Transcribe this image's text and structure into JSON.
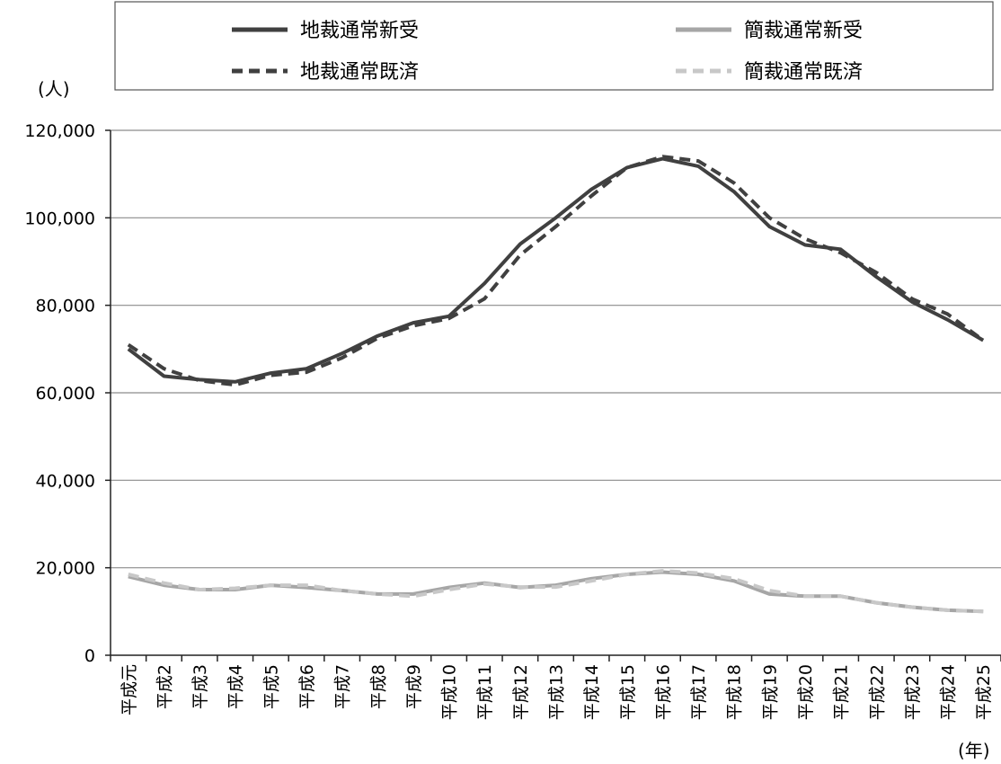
{
  "chart_data": {
    "type": "line",
    "title": "",
    "ylabel": "(人)",
    "xlabel": "(年)",
    "ylim": [
      0,
      120000
    ],
    "yticks": [
      0,
      20000,
      40000,
      60000,
      80000,
      100000,
      120000
    ],
    "ytick_labels": [
      "0",
      "20,000",
      "40,000",
      "60,000",
      "80,000",
      "100,000",
      "120,000"
    ],
    "grid": true,
    "legend_position": "top",
    "categories": [
      "平成元",
      "平成2",
      "平成3",
      "平成4",
      "平成5",
      "平成6",
      "平成7",
      "平成8",
      "平成9",
      "平成10",
      "平成11",
      "平成12",
      "平成13",
      "平成14",
      "平成15",
      "平成16",
      "平成17",
      "平成18",
      "平成19",
      "平成20",
      "平成21",
      "平成22",
      "平成23",
      "平成24",
      "平成25"
    ],
    "series": [
      {
        "name": "地裁通常新受",
        "color": "#404040",
        "dash": "solid",
        "values": [
          70000,
          63800,
          63000,
          62500,
          64500,
          65500,
          69000,
          73000,
          76000,
          77500,
          85000,
          94000,
          100000,
          106500,
          111500,
          113500,
          111800,
          106000,
          98000,
          93800,
          92800,
          86500,
          80800,
          76700,
          72000
        ]
      },
      {
        "name": "簡裁通常新受",
        "color": "#a6a6a6",
        "dash": "solid",
        "values": [
          18000,
          16000,
          15000,
          15000,
          16000,
          15500,
          14800,
          14000,
          14000,
          15500,
          16500,
          15500,
          16000,
          17500,
          18500,
          19000,
          18500,
          17000,
          14000,
          13500,
          13500,
          12000,
          11000,
          10300,
          10000
        ]
      },
      {
        "name": "地裁通常既済",
        "color": "#404040",
        "dash": "dashed",
        "values": [
          71000,
          65500,
          62800,
          61800,
          64000,
          64700,
          68000,
          72500,
          75300,
          77000,
          81500,
          91500,
          98000,
          105000,
          111500,
          114000,
          113000,
          108000,
          100000,
          95200,
          92000,
          87500,
          81500,
          78000,
          72000
        ]
      },
      {
        "name": "簡裁通常既済",
        "color": "#c8c8c8",
        "dash": "dashed",
        "values": [
          18500,
          16500,
          15000,
          15300,
          16000,
          16000,
          14800,
          14000,
          13500,
          15000,
          16300,
          15600,
          15600,
          17000,
          18500,
          19300,
          18800,
          17500,
          14800,
          13500,
          13500,
          12000,
          11000,
          10300,
          10000
        ]
      }
    ]
  }
}
